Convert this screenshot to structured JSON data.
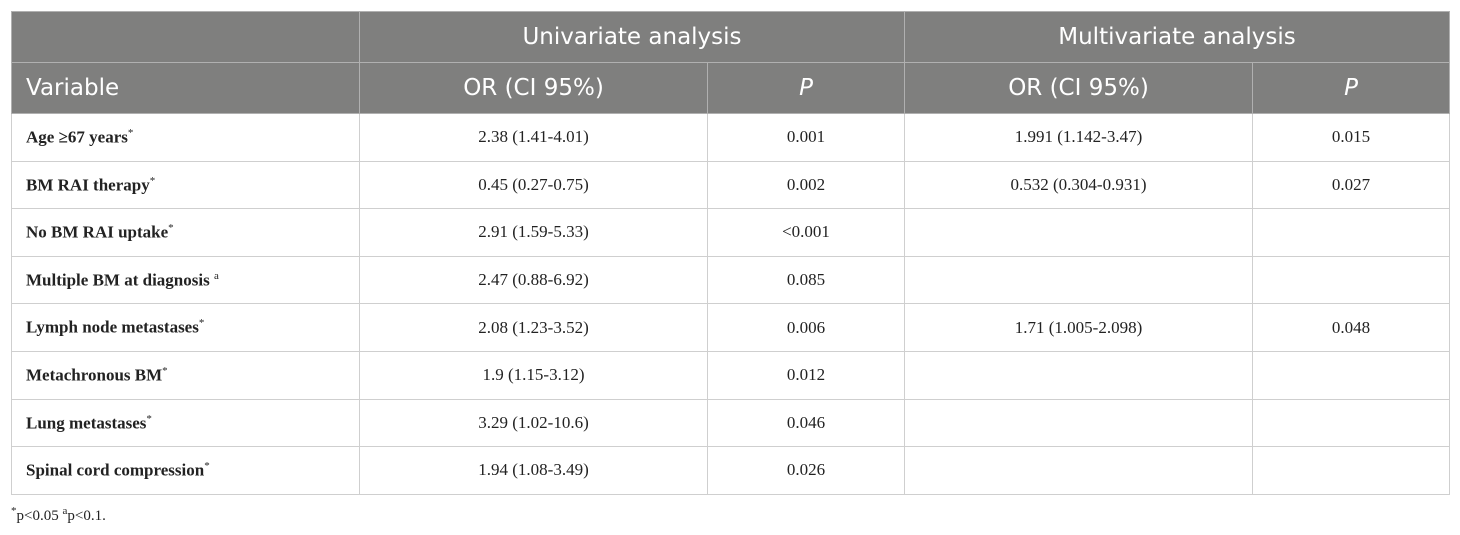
{
  "table": {
    "group_headers": [
      "Univariate analysis",
      "Multivariate analysis"
    ],
    "column_headers": [
      "Variable",
      "OR (CI 95%)",
      "P",
      "OR (CI 95%)",
      "P"
    ],
    "rows": [
      {
        "variable": "Age ≥67 years",
        "note": "*",
        "uni_or": "2.38 (1.41-4.01)",
        "uni_p": "0.001",
        "multi_or": "1.991 (1.142-3.47)",
        "multi_p": "0.015"
      },
      {
        "variable": "BM RAI therapy",
        "note": "*",
        "uni_or": "0.45 (0.27-0.75)",
        "uni_p": "0.002",
        "multi_or": "0.532 (0.304-0.931)",
        "multi_p": "0.027"
      },
      {
        "variable": "No BM RAI uptake",
        "note": "*",
        "uni_or": "2.91 (1.59-5.33)",
        "uni_p": "<0.001",
        "multi_or": null,
        "multi_p": null
      },
      {
        "variable": "Multiple BM at diagnosis",
        "note": "a",
        "uni_or": "2.47 (0.88-6.92)",
        "uni_p": "0.085",
        "multi_or": null,
        "multi_p": null
      },
      {
        "variable": "Lymph node metastases",
        "note": "*",
        "uni_or": "2.08 (1.23-3.52)",
        "uni_p": "0.006",
        "multi_or": "1.71 (1.005-2.098)",
        "multi_p": "0.048"
      },
      {
        "variable": "Metachronous BM",
        "note": "*",
        "uni_or": "1.9 (1.15-3.12)",
        "uni_p": "0.012",
        "multi_or": null,
        "multi_p": null
      },
      {
        "variable": "Lung metastases",
        "note": "*",
        "uni_or": "3.29 (1.02-10.6)",
        "uni_p": "0.046",
        "multi_or": null,
        "multi_p": null
      },
      {
        "variable": "Spinal cord compression",
        "note": "*",
        "uni_or": "1.94 (1.08-3.49)",
        "uni_p": "0.026",
        "multi_or": null,
        "multi_p": null
      }
    ],
    "footnotes": [
      {
        "mark": "*",
        "text": "p<0.05"
      },
      {
        "mark": "a",
        "text": "p<0.1."
      }
    ]
  }
}
